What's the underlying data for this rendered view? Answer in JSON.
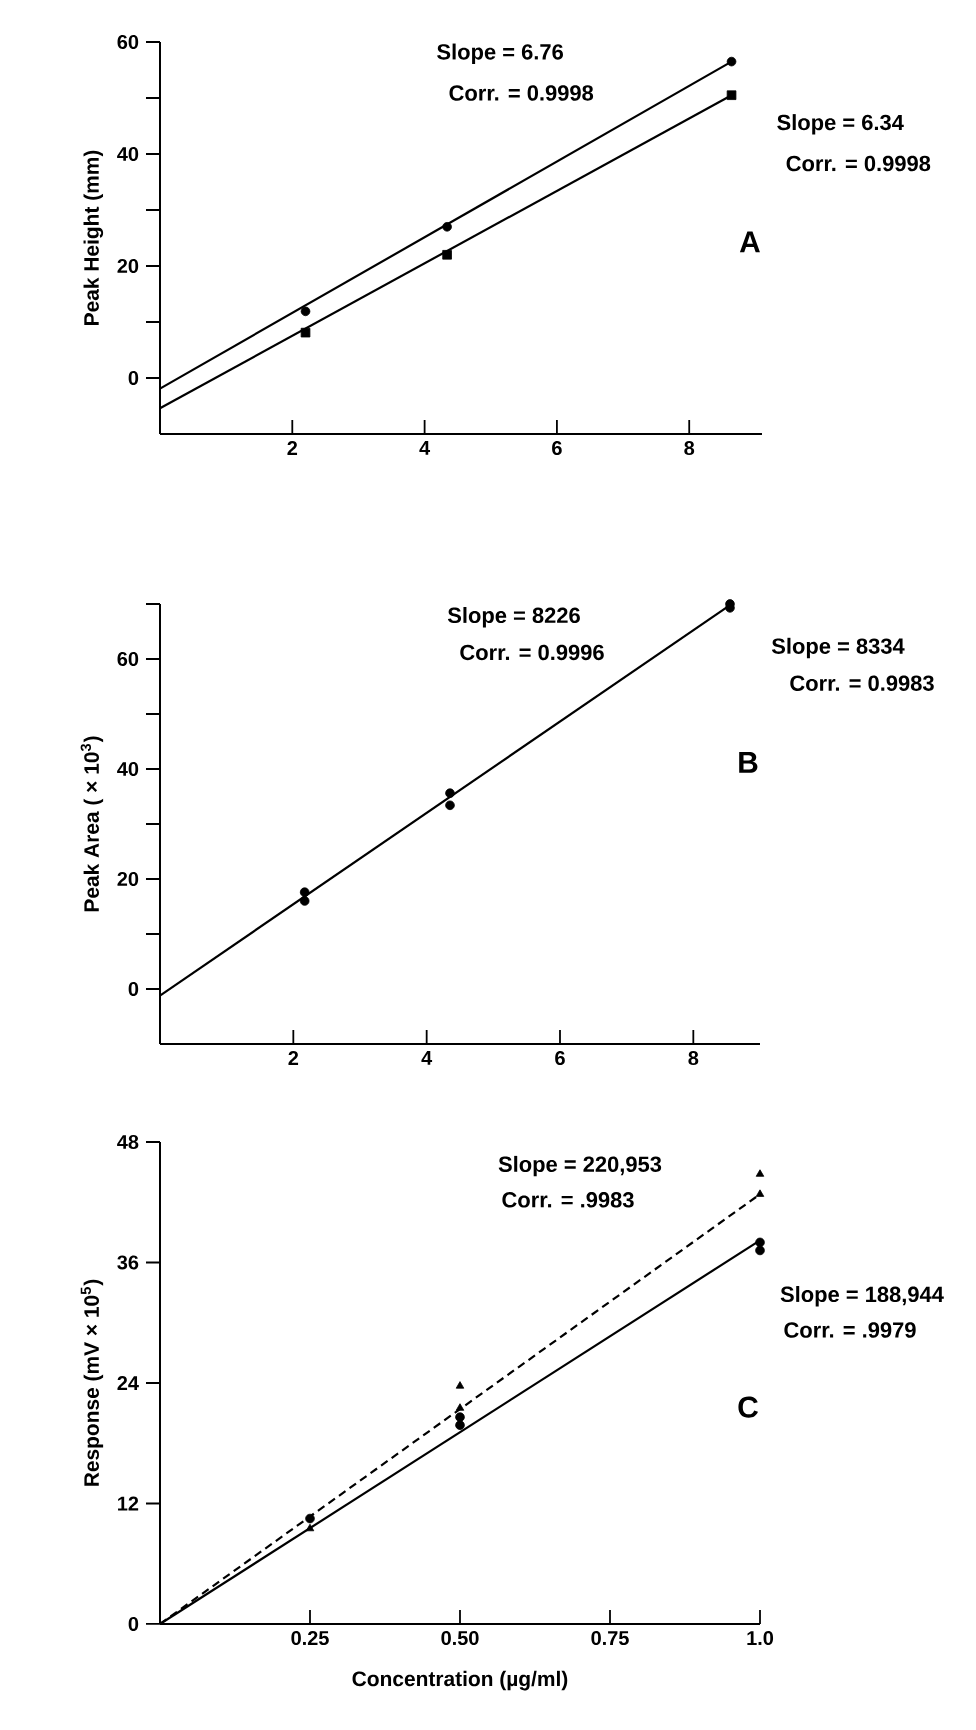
{
  "chart_data": [
    {
      "type": "scatter",
      "ylabel": "Peak Height (mm)",
      "xlim": [
        0,
        9.1
      ],
      "ylim": [
        -10,
        60
      ],
      "xticks": [
        2,
        4,
        6,
        8
      ],
      "yticks": [
        0,
        {
          "value": 10,
          "label": null
        },
        20,
        {
          "value": 30,
          "label": null
        },
        40,
        {
          "value": 50,
          "label": null
        },
        60
      ],
      "series": [
        {
          "marker": "circle",
          "color": "#000000",
          "x": [
            2.2,
            4.34,
            8.64
          ],
          "values": [
            11.9,
            27.0,
            56.5
          ]
        },
        {
          "marker": "square",
          "color": "#000000",
          "x": [
            2.2,
            4.34,
            8.64
          ],
          "values": [
            8.1,
            22.0,
            50.5
          ]
        },
        {
          "type": "line",
          "line_style": "solid",
          "color": "#000000",
          "x": [
            0,
            8.64
          ],
          "values": [
            -1.9,
            56.5
          ]
        },
        {
          "type": "line",
          "line_style": "solid",
          "color": "#000000",
          "x": [
            0,
            8.64
          ],
          "values": [
            -5.4,
            50.5
          ]
        }
      ],
      "annotations": [
        "Slope = 6.76",
        "Corr. = 0.9998",
        "Slope = 6.34",
        "Corr. = 0.9998",
        "A"
      ]
    },
    {
      "type": "scatter",
      "ylabel": "Peak Area ( × 10$^{3}$)",
      "xlim": [
        0,
        9
      ],
      "ylim": [
        -10,
        70
      ],
      "xticks": [
        2,
        4,
        6,
        8
      ],
      "yticks": [
        0,
        {
          "value": 10,
          "label": null
        },
        20,
        {
          "value": 30,
          "label": null
        },
        40,
        {
          "value": 50,
          "label": null
        },
        60,
        {
          "value": 70,
          "label": null
        }
      ],
      "series": [
        {
          "marker": "circle",
          "color": "#000000",
          "x": [
            2.17,
            4.35,
            8.55
          ],
          "values": [
            17.6,
            35.6,
            70
          ]
        },
        {
          "marker": "circle",
          "color": "#000000",
          "x": [
            2.17,
            4.35,
            8.55
          ],
          "values": [
            16.0,
            33.4,
            69.3
          ]
        },
        {
          "type": "line",
          "line_style": "solid",
          "color": "#000000",
          "x": [
            0,
            8.55
          ],
          "values": [
            -1.2,
            69.8
          ]
        }
      ],
      "annotations": [
        "Slope = 8226",
        "Corr. = 0.9996",
        "Slope = 8334",
        "Corr. = 0.9983",
        "B"
      ]
    },
    {
      "type": "scatter",
      "xlabel": "Concentration (µg/ml)",
      "ylabel": "Response (mV × 10$^{5}$)",
      "xlim": [
        0,
        1.0
      ],
      "ylim": [
        0,
        48
      ],
      "xticks": [
        {
          "value": 0.25,
          "label": "0.25"
        },
        {
          "value": 0.5,
          "label": "0.50"
        },
        {
          "value": 0.75,
          "label": "0.75"
        },
        {
          "value": 1.0,
          "label": "1.0"
        }
      ],
      "yticks": [
        0,
        12,
        24,
        36,
        48
      ],
      "series": [
        {
          "marker": "triangle",
          "color": "#000000",
          "x": [
            0.25,
            0.5,
            0.5,
            1.0,
            1.0
          ],
          "values": [
            9.5,
            23.7,
            21.5,
            44.8,
            42.8
          ]
        },
        {
          "marker": "circle",
          "color": "#000000",
          "x": [
            0.25,
            0.5,
            0.5,
            1.0,
            1.0
          ],
          "values": [
            10.5,
            20.6,
            19.8,
            38.0,
            37.2
          ]
        },
        {
          "type": "line",
          "line_style": "dashed",
          "color": "#000000",
          "x": [
            0,
            1.0
          ],
          "values": [
            0,
            42.8
          ]
        },
        {
          "type": "line",
          "line_style": "solid",
          "color": "#000000",
          "x": [
            0,
            1.0
          ],
          "values": [
            0,
            38.2
          ]
        }
      ],
      "annotations": [
        "Slope = 220,953",
        "Corr. = .9983",
        "Slope = 188,944",
        "Corr. = .9979",
        "C"
      ]
    }
  ]
}
